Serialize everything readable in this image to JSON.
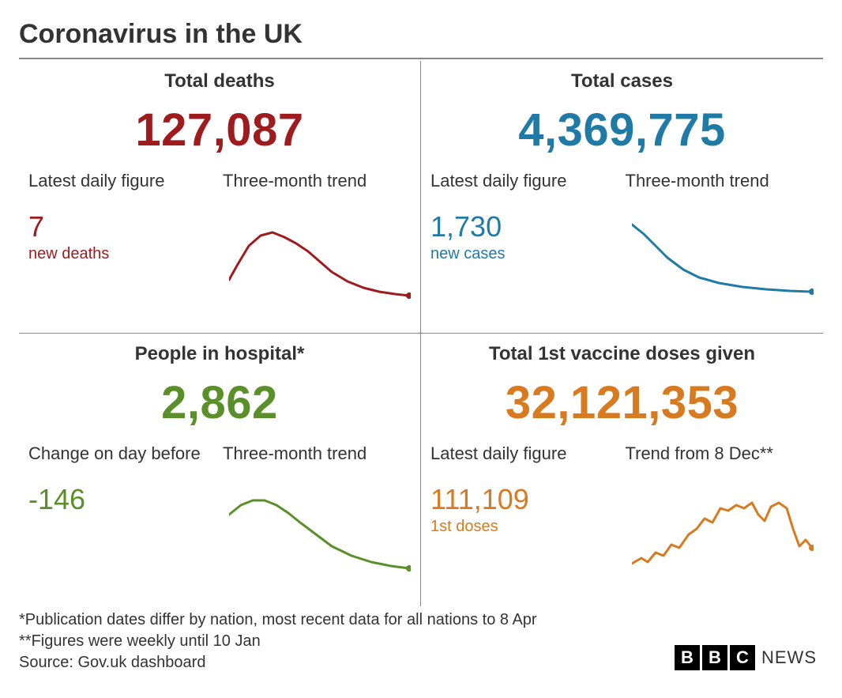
{
  "title": "Coronavirus in the UK",
  "panels": {
    "deaths": {
      "label": "Total deaths",
      "value": "127,087",
      "color": "#9e1b1e",
      "sub_left_label": "Latest daily figure",
      "sub_left_value": "7",
      "sub_left_badge": "new deaths",
      "sub_right_label": "Three-month trend",
      "spark": {
        "stroke": "#9e1b1e",
        "stroke_width": 3,
        "end_dot": true,
        "points": [
          [
            0,
            78
          ],
          [
            10,
            60
          ],
          [
            25,
            35
          ],
          [
            40,
            22
          ],
          [
            55,
            18
          ],
          [
            70,
            24
          ],
          [
            85,
            32
          ],
          [
            100,
            42
          ],
          [
            115,
            55
          ],
          [
            130,
            68
          ],
          [
            150,
            80
          ],
          [
            170,
            88
          ],
          [
            190,
            93
          ],
          [
            210,
            96
          ],
          [
            228,
            98
          ]
        ]
      }
    },
    "cases": {
      "label": "Total cases",
      "value": "4,369,775",
      "color": "#1f7ba6",
      "sub_left_label": "Latest daily figure",
      "sub_left_value": "1,730",
      "sub_left_badge": "new cases",
      "sub_right_label": "Three-month trend",
      "spark": {
        "stroke": "#1f7ba6",
        "stroke_width": 3,
        "end_dot": true,
        "points": [
          [
            0,
            8
          ],
          [
            15,
            20
          ],
          [
            30,
            35
          ],
          [
            45,
            50
          ],
          [
            65,
            65
          ],
          [
            85,
            75
          ],
          [
            110,
            82
          ],
          [
            140,
            87
          ],
          [
            170,
            90
          ],
          [
            200,
            92
          ],
          [
            228,
            93
          ]
        ]
      }
    },
    "hospital": {
      "label": "People in hospital*",
      "value": "2,862",
      "color": "#5a8f29",
      "sub_left_label": "Change on day before",
      "sub_left_value": "-146",
      "sub_left_badge": "",
      "sub_right_label": "Three-month trend",
      "spark": {
        "stroke": "#5a8f29",
        "stroke_width": 3,
        "end_dot": true,
        "points": [
          [
            0,
            30
          ],
          [
            15,
            18
          ],
          [
            30,
            12
          ],
          [
            45,
            12
          ],
          [
            60,
            18
          ],
          [
            75,
            28
          ],
          [
            90,
            40
          ],
          [
            110,
            55
          ],
          [
            130,
            70
          ],
          [
            155,
            82
          ],
          [
            180,
            90
          ],
          [
            205,
            95
          ],
          [
            228,
            98
          ]
        ]
      }
    },
    "vaccines": {
      "label": "Total 1st vaccine doses given",
      "value": "32,121,353",
      "color": "#d87a1f",
      "sub_left_label": "Latest daily figure",
      "sub_left_value": "111,109",
      "sub_left_badge": "1st doses",
      "sub_right_label": "Trend from 8 Dec**",
      "spark": {
        "stroke": "#d87a1f",
        "stroke_width": 3,
        "end_dot": true,
        "points": [
          [
            0,
            92
          ],
          [
            12,
            85
          ],
          [
            20,
            90
          ],
          [
            30,
            78
          ],
          [
            40,
            82
          ],
          [
            50,
            68
          ],
          [
            60,
            72
          ],
          [
            72,
            55
          ],
          [
            82,
            48
          ],
          [
            92,
            35
          ],
          [
            102,
            40
          ],
          [
            112,
            22
          ],
          [
            122,
            25
          ],
          [
            132,
            18
          ],
          [
            142,
            22
          ],
          [
            152,
            15
          ],
          [
            160,
            30
          ],
          [
            168,
            38
          ],
          [
            176,
            20
          ],
          [
            186,
            15
          ],
          [
            196,
            22
          ],
          [
            204,
            48
          ],
          [
            212,
            70
          ],
          [
            220,
            62
          ],
          [
            228,
            72
          ]
        ]
      }
    }
  },
  "footnotes": {
    "note1": "*Publication dates differ by nation, most recent data for all nations to 8 Apr",
    "note2": "**Figures were weekly until 10 Jan",
    "source": "Source: Gov.uk dashboard"
  },
  "logo": {
    "letters": [
      "B",
      "B",
      "C"
    ],
    "word": "NEWS"
  },
  "style": {
    "background": "#ffffff",
    "text_color": "#333333",
    "rule_color": "#888888",
    "title_fontsize": 34,
    "section_label_fontsize": 24,
    "big_number_fontsize": 58,
    "sub_label_fontsize": 22,
    "sub_value_fontsize": 36,
    "sub_badge_fontsize": 20,
    "footnote_fontsize": 20
  }
}
